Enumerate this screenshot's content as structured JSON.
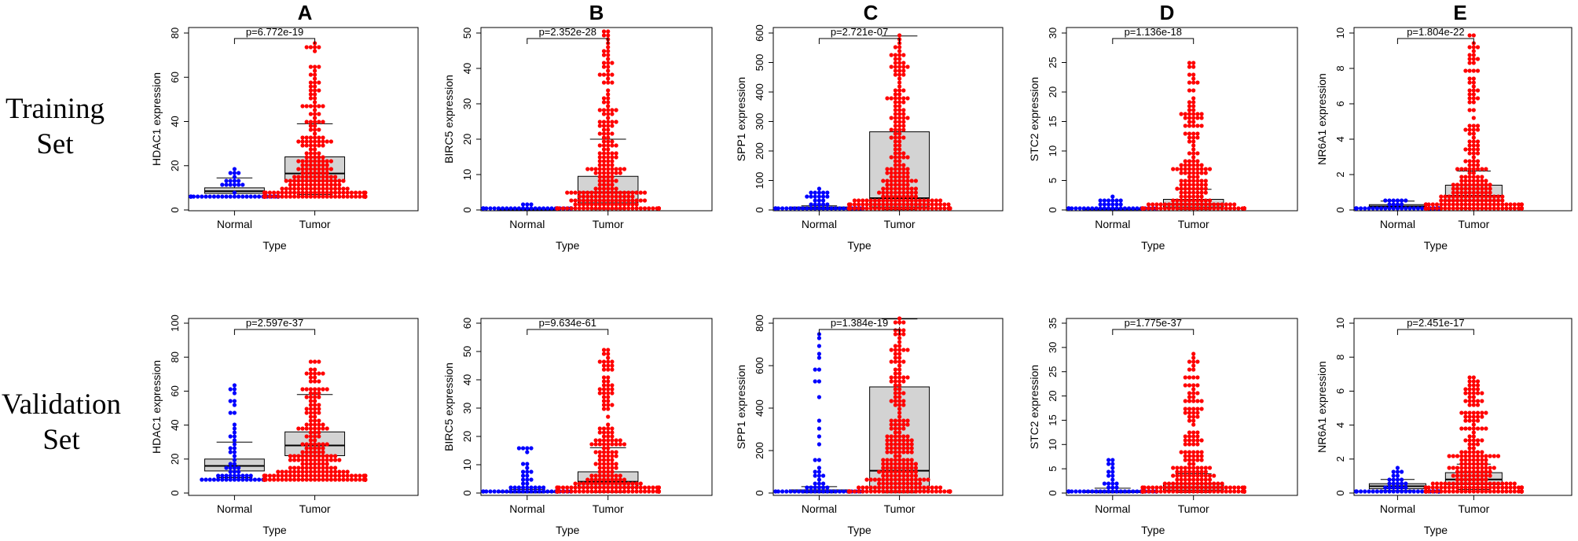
{
  "row_labels": [
    [
      "Training",
      "Set"
    ],
    [
      "Validation",
      "Set"
    ]
  ],
  "column_labels": [
    "A",
    "B",
    "C",
    "D",
    "E"
  ],
  "colors": {
    "normal": "#0000ff",
    "tumor": "#ff0000",
    "box_fill": "#d3d3d3"
  },
  "chart_data": [
    {
      "type": "beeswarm-box",
      "row": "Training Set",
      "panel": "A",
      "ylabel": "HDAC1 expression",
      "xlabel": "Type",
      "categories": [
        "Normal",
        "Tumor"
      ],
      "ylim": [
        0,
        80
      ],
      "yticks": [
        0,
        20,
        40,
        60,
        80
      ],
      "pvalue": "p=6.772e-19",
      "box": {
        "Normal": [
          7.5,
          8.5,
          10,
          14.5
        ],
        "Tumor": [
          7,
          13,
          16.5,
          24,
          39
        ]
      },
      "dist": {
        "Normal": [
          5.5,
          18.5,
          0.8
        ],
        "Tumor": [
          6,
          74.5,
          0.62
        ]
      }
    },
    {
      "type": "beeswarm-box",
      "row": "Training Set",
      "panel": "B",
      "ylabel": "BIRC5 expression",
      "xlabel": "Type",
      "categories": [
        "Normal",
        "Tumor"
      ],
      "ylim": [
        0,
        50
      ],
      "yticks": [
        0,
        10,
        20,
        30,
        40,
        50
      ],
      "pvalue": "p=2.352e-28",
      "box": {
        "Normal": [
          0.05,
          0.15,
          0.3,
          0.5
        ],
        "Tumor": [
          0.2,
          2,
          5,
          9.5,
          20
        ]
      },
      "dist": {
        "Normal": [
          0,
          1.2,
          0.85
        ],
        "Tumor": [
          0.1,
          50,
          0.62
        ]
      }
    },
    {
      "type": "beeswarm-box",
      "row": "Training Set",
      "panel": "C",
      "ylabel": "SPP1 expression",
      "xlabel": "Type",
      "categories": [
        "Normal",
        "Tumor"
      ],
      "ylim": [
        0,
        600
      ],
      "yticks": [
        0,
        100,
        200,
        300,
        400,
        500,
        600
      ],
      "pvalue": "p=2.721e-07",
      "box": {
        "Normal": [
          2,
          6,
          10,
          14
        ],
        "Tumor": [
          1,
          10,
          40,
          265,
          590
        ]
      },
      "dist": {
        "Normal": [
          0,
          78,
          0.9
        ],
        "Tumor": [
          0,
          590,
          0.55
        ]
      }
    },
    {
      "type": "beeswarm-box",
      "row": "Training Set",
      "panel": "D",
      "ylabel": "STC2 expression",
      "xlabel": "Type",
      "categories": [
        "Normal",
        "Tumor"
      ],
      "ylim": [
        0,
        30
      ],
      "yticks": [
        0,
        5,
        10,
        15,
        20,
        25,
        30
      ],
      "pvalue": "p=1.136e-18",
      "box": {
        "Normal": [
          0.05,
          0.1,
          0.2,
          0.3
        ],
        "Tumor": [
          0.1,
          0.5,
          1,
          1.8,
          3.5
        ]
      },
      "dist": {
        "Normal": [
          0,
          2.3,
          0.9
        ],
        "Tumor": [
          0,
          25,
          0.85
        ]
      }
    },
    {
      "type": "beeswarm-box",
      "row": "Training Set",
      "panel": "E",
      "ylabel": "NR6A1 expression",
      "xlabel": "Type",
      "categories": [
        "Normal",
        "Tumor"
      ],
      "ylim": [
        0,
        10
      ],
      "yticks": [
        0,
        2,
        4,
        6,
        8,
        10
      ],
      "pvalue": "p=1.804e-22",
      "box": {
        "Normal": [
          0.15,
          0.2,
          0.3,
          0.5
        ],
        "Tumor": [
          0.1,
          0.5,
          0.8,
          1.4,
          2.2
        ]
      },
      "dist": {
        "Normal": [
          0.1,
          0.6,
          0.9
        ],
        "Tumor": [
          0.05,
          9.8,
          0.72
        ]
      }
    },
    {
      "type": "beeswarm-box",
      "row": "Validation Set",
      "panel": "A",
      "ylabel": "HDAC1 expression",
      "xlabel": "Type",
      "categories": [
        "Normal",
        "Tumor"
      ],
      "ylim": [
        0,
        100
      ],
      "yticks": [
        0,
        20,
        40,
        60,
        80,
        100
      ],
      "pvalue": "p=2.597e-37",
      "box": {
        "Normal": [
          9,
          13,
          16,
          20,
          30
        ],
        "Tumor": [
          8,
          22,
          28,
          36,
          58
        ]
      },
      "dist": {
        "Normal": [
          8,
          64,
          0.7
        ],
        "Tumor": [
          7,
          77,
          0.6
        ]
      }
    },
    {
      "type": "beeswarm-box",
      "row": "Validation Set",
      "panel": "B",
      "ylabel": "BIRC5 expression",
      "xlabel": "Type",
      "categories": [
        "Normal",
        "Tumor"
      ],
      "ylim": [
        0,
        60
      ],
      "yticks": [
        0,
        10,
        20,
        30,
        40,
        50,
        60
      ],
      "pvalue": "p=9.634e-61",
      "box": {
        "Normal": [
          0.05,
          0.2,
          0.4,
          0.7,
          1.3
        ],
        "Tumor": [
          0.2,
          2,
          4,
          7.5,
          16
        ]
      },
      "dist": {
        "Normal": [
          0,
          16.5,
          0.9
        ],
        "Tumor": [
          0.2,
          51,
          0.7
        ]
      }
    },
    {
      "type": "beeswarm-box",
      "row": "Validation Set",
      "panel": "C",
      "ylabel": "SPP1 expression",
      "xlabel": "Type",
      "categories": [
        "Normal",
        "Tumor"
      ],
      "ylim": [
        0,
        800
      ],
      "yticks": [
        0,
        200,
        400,
        600,
        800
      ],
      "pvalue": "p=1.384e-19",
      "box": {
        "Normal": [
          1,
          4,
          8,
          15,
          30
        ],
        "Tumor": [
          1,
          10,
          105,
          500,
          820
        ]
      },
      "dist": {
        "Normal": [
          0,
          740,
          0.9
        ],
        "Tumor": [
          0,
          820,
          0.5
        ]
      }
    },
    {
      "type": "beeswarm-box",
      "row": "Validation Set",
      "panel": "D",
      "ylabel": "STC2 expression",
      "xlabel": "Type",
      "categories": [
        "Normal",
        "Tumor"
      ],
      "ylim": [
        0,
        35
      ],
      "yticks": [
        0,
        5,
        10,
        15,
        20,
        25,
        30,
        35
      ],
      "pvalue": "p=1.775e-37",
      "box": {
        "Normal": [
          0.05,
          0.1,
          0.2,
          0.5,
          1
        ],
        "Tumor": [
          0.1,
          0.6,
          1.2,
          2,
          4
        ]
      },
      "dist": {
        "Normal": [
          0,
          7,
          0.9
        ],
        "Tumor": [
          0.05,
          28.5,
          0.85
        ]
      }
    },
    {
      "type": "beeswarm-box",
      "row": "Validation Set",
      "panel": "E",
      "ylabel": "NR6A1 expression",
      "xlabel": "Type",
      "categories": [
        "Normal",
        "Tumor"
      ],
      "ylim": [
        0,
        10
      ],
      "yticks": [
        0,
        2,
        4,
        6,
        8,
        10
      ],
      "pvalue": "p=2.451e-17",
      "box": {
        "Normal": [
          0.15,
          0.25,
          0.4,
          0.55,
          0.8
        ],
        "Tumor": [
          0.2,
          0.5,
          0.8,
          1.2,
          1.7
        ]
      },
      "dist": {
        "Normal": [
          0.1,
          1.4,
          0.85
        ],
        "Tumor": [
          0.1,
          6.9,
          0.75
        ]
      }
    }
  ]
}
